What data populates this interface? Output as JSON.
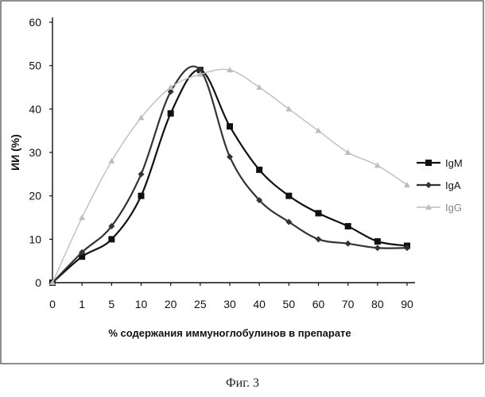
{
  "caption": "Фиг. 3",
  "chart_data": {
    "type": "line",
    "xlabel": "% содержания иммуноглобулинов в препарате",
    "ylabel": "ИИ (%)",
    "x": [
      "0",
      "1",
      "5",
      "10",
      "20",
      "25",
      "30",
      "40",
      "50",
      "60",
      "70",
      "80",
      "90"
    ],
    "ylim": [
      0,
      60
    ],
    "yticks": [
      "0",
      "10",
      "20",
      "30",
      "40",
      "50",
      "60"
    ],
    "grid": false,
    "legend": "right",
    "series": [
      {
        "name": "IgM",
        "color": "#111111",
        "marker": "square",
        "values": [
          0,
          6,
          10,
          20,
          39,
          49,
          36,
          26,
          20,
          16,
          13,
          9.5,
          8.5
        ]
      },
      {
        "name": "IgA",
        "color": "#333333",
        "marker": "diamond",
        "values": [
          0,
          7,
          13,
          25,
          44,
          49,
          29,
          19,
          14,
          10,
          9,
          8,
          8
        ]
      },
      {
        "name": "IgG",
        "color": "#bdbdbd",
        "marker": "triangle",
        "values": [
          0,
          15,
          28,
          38,
          45,
          48,
          49,
          45,
          40,
          35,
          30,
          27,
          22.5
        ]
      }
    ]
  }
}
